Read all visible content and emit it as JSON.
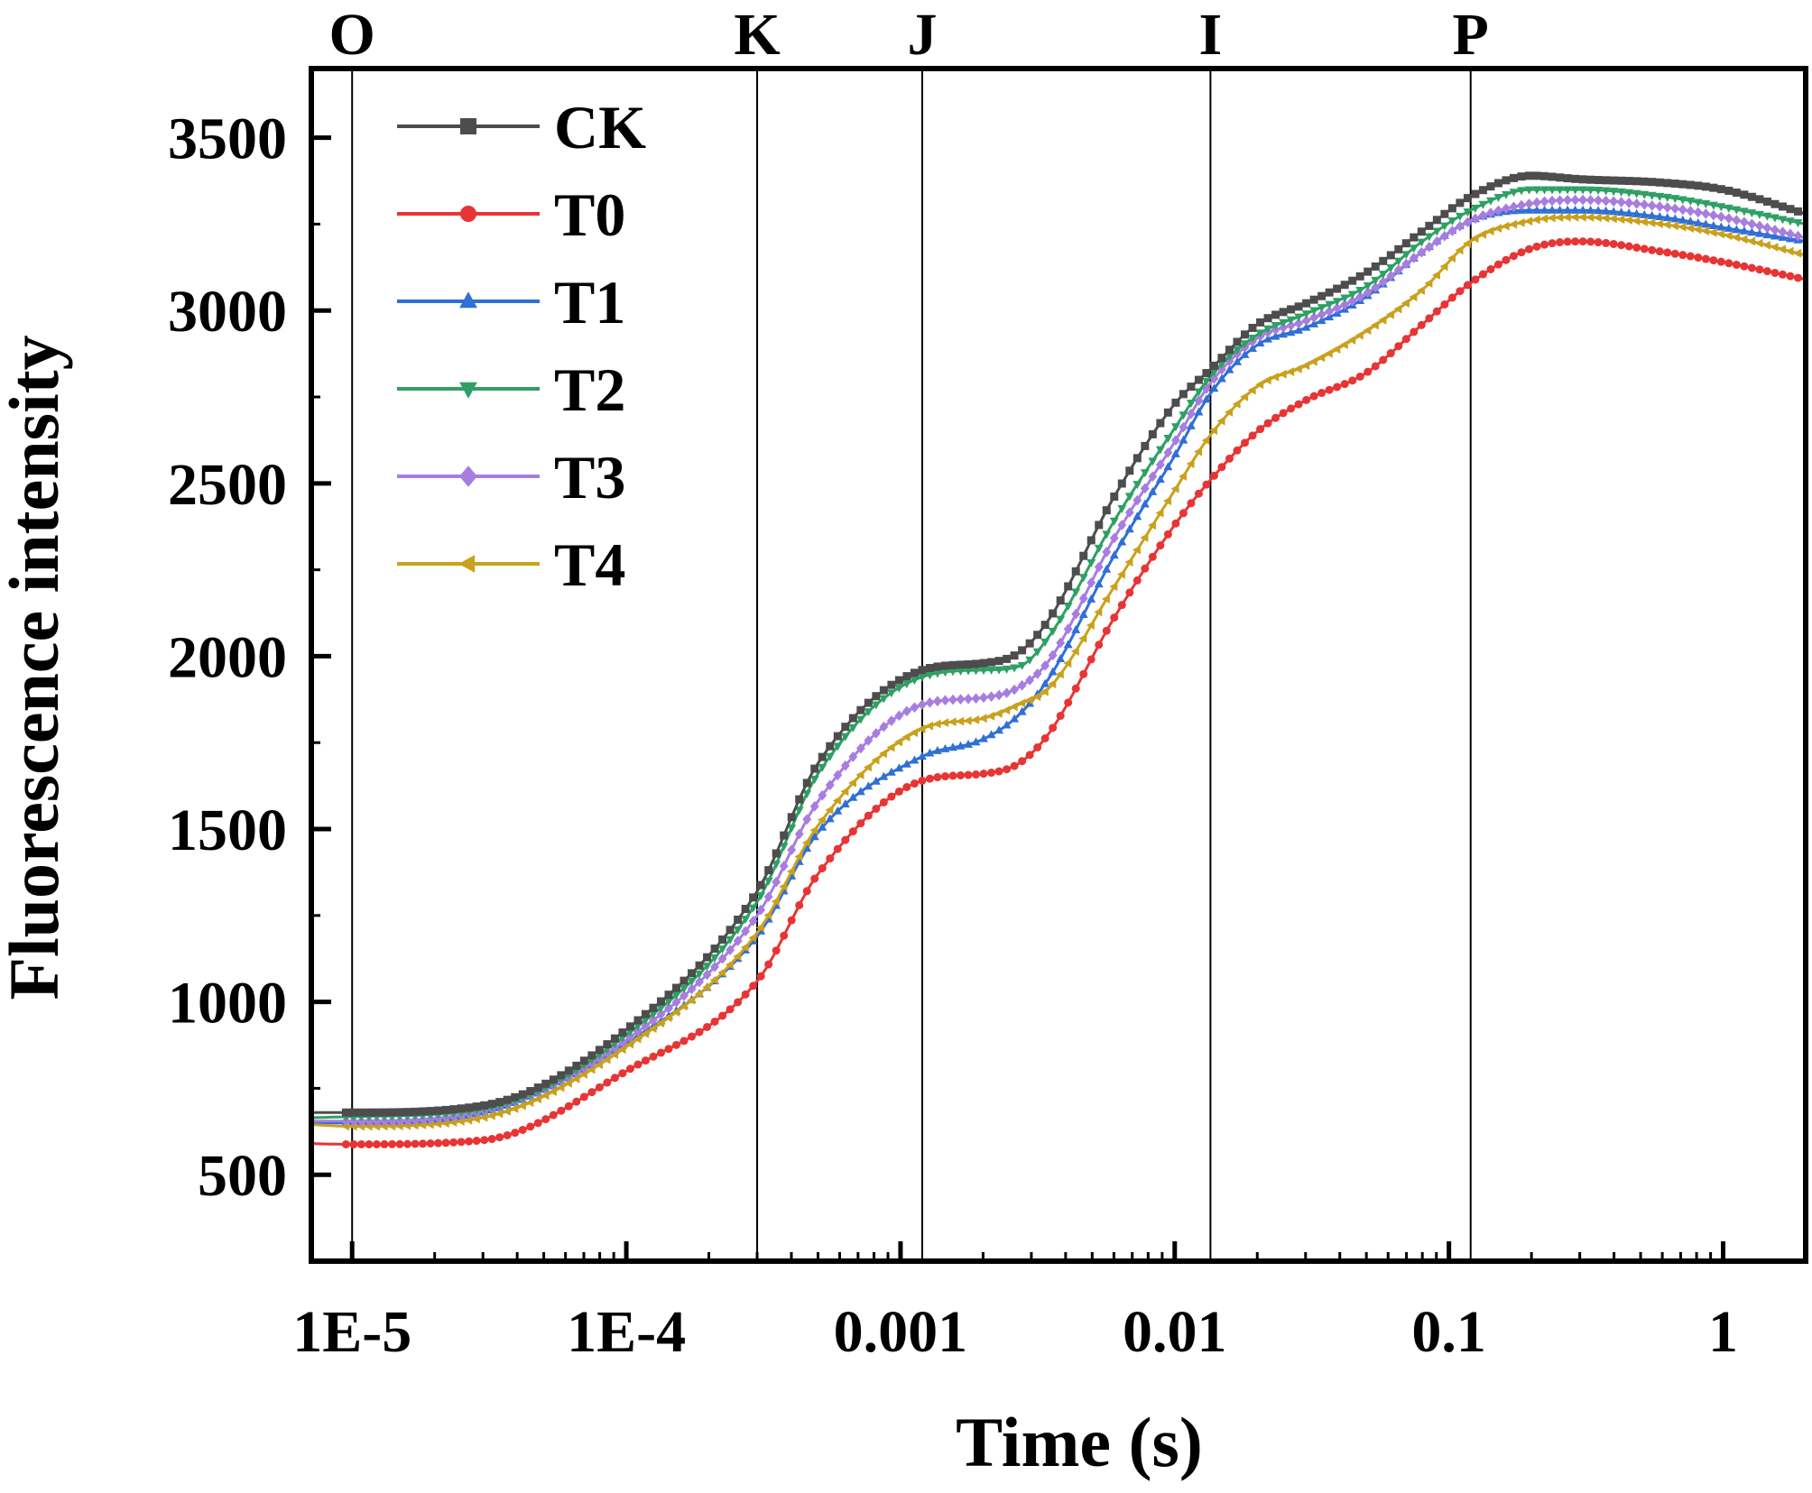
{
  "chart_data": {
    "type": "line",
    "xlabel": "Time (s)",
    "ylabel": "Fluorescence intensity",
    "xscale": "log",
    "xlim": [
      7.1e-06,
      2.0
    ],
    "ylim": [
      250,
      3700
    ],
    "x_ticks": [
      {
        "value": 1e-05,
        "label": "1E-5"
      },
      {
        "value": 0.0001,
        "label": "1E-4"
      },
      {
        "value": 0.001,
        "label": "0.001"
      },
      {
        "value": 0.01,
        "label": "0.01"
      },
      {
        "value": 0.1,
        "label": "0.1"
      },
      {
        "value": 1,
        "label": "1"
      }
    ],
    "y_ticks": [
      {
        "value": 500,
        "label": "500"
      },
      {
        "value": 1000,
        "label": "1000"
      },
      {
        "value": 1500,
        "label": "1500"
      },
      {
        "value": 2000,
        "label": "2000"
      },
      {
        "value": 2500,
        "label": "2500"
      },
      {
        "value": 3000,
        "label": "3000"
      },
      {
        "value": 3500,
        "label": "3500"
      }
    ],
    "phase_markers": [
      {
        "label": "O",
        "x": 1e-05
      },
      {
        "label": "K",
        "x": 0.0003
      },
      {
        "label": "J",
        "x": 0.0012
      },
      {
        "label": "I",
        "x": 0.0135
      },
      {
        "label": "P",
        "x": 0.12
      }
    ],
    "legend_position": "top-left",
    "x": [
      7.1e-06,
      1e-05,
      3e-05,
      0.0001,
      0.0003,
      0.0005,
      0.0012,
      0.002,
      0.0027,
      0.0035,
      0.006,
      0.01,
      0.0135,
      0.02,
      0.03,
      0.05,
      0.08,
      0.12,
      0.2,
      0.3,
      0.6,
      1.0,
      2.0
    ],
    "series": [
      {
        "name": "CK",
        "color": "#4d4d4d",
        "marker": "square",
        "values": [
          680,
          680,
          700,
          920,
          1320,
          1690,
          1960,
          1980,
          2010,
          2110,
          2460,
          2730,
          2830,
          2960,
          3020,
          3110,
          3230,
          3330,
          3390,
          3380,
          3370,
          3350,
          3280
        ]
      },
      {
        "name": "T0",
        "color": "#e83434",
        "marker": "circle",
        "values": [
          590,
          588,
          600,
          800,
          1060,
          1370,
          1640,
          1660,
          1690,
          1780,
          2110,
          2380,
          2510,
          2650,
          2740,
          2820,
          2960,
          3080,
          3180,
          3200,
          3170,
          3140,
          3090
        ]
      },
      {
        "name": "T1",
        "color": "#2f6fd6",
        "marker": "triangle-up",
        "values": [
          650,
          650,
          680,
          880,
          1190,
          1490,
          1710,
          1760,
          1830,
          1940,
          2290,
          2580,
          2760,
          2900,
          2950,
          3040,
          3170,
          3260,
          3290,
          3290,
          3270,
          3240,
          3200
        ]
      },
      {
        "name": "T2",
        "color": "#2ea064",
        "marker": "triangle-down",
        "values": [
          665,
          668,
          690,
          905,
          1290,
          1660,
          1940,
          1960,
          1970,
          2060,
          2390,
          2660,
          2810,
          2930,
          2990,
          3070,
          3200,
          3290,
          3350,
          3350,
          3330,
          3300,
          3250
        ]
      },
      {
        "name": "T3",
        "color": "#a77de0",
        "marker": "diamond",
        "values": [
          655,
          655,
          685,
          890,
          1250,
          1580,
          1860,
          1880,
          1910,
          1990,
          2340,
          2620,
          2790,
          2920,
          2970,
          3050,
          3170,
          3260,
          3310,
          3320,
          3300,
          3270,
          3210
        ]
      },
      {
        "name": "T4",
        "color": "#c9a11c",
        "marker": "triangle-left",
        "values": [
          645,
          640,
          665,
          870,
          1200,
          1510,
          1790,
          1820,
          1860,
          1910,
          2200,
          2480,
          2640,
          2780,
          2840,
          2940,
          3060,
          3200,
          3260,
          3270,
          3250,
          3220,
          3160
        ]
      }
    ]
  }
}
